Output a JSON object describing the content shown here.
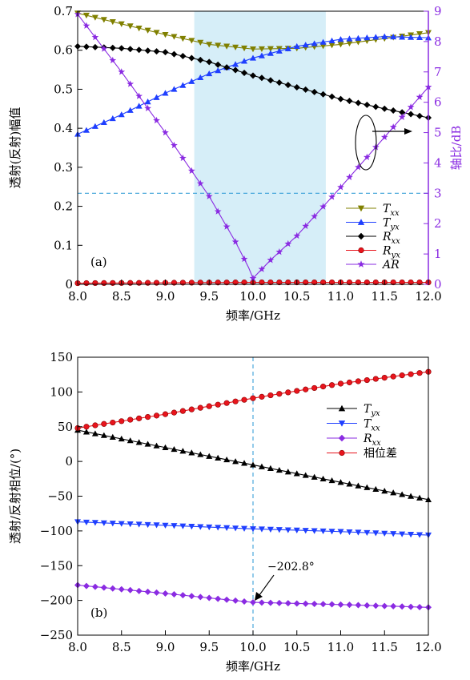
{
  "chart_data": [
    {
      "type": "line",
      "panel_label": "(a)",
      "xlabel": "频率/GHz",
      "ylabel": "透射(反射)幅值",
      "y2label": "轴比/dB",
      "xlim": [
        8.0,
        12.0
      ],
      "ylim": [
        0,
        0.7
      ],
      "y2lim": [
        0,
        9
      ],
      "xticks": [
        "8.0",
        "8.5",
        "9.0",
        "9.5",
        "10.0",
        "10.5",
        "11.0",
        "11.5",
        "12.0"
      ],
      "yticks": [
        "0",
        "0.1",
        "0.2",
        "0.3",
        "0.4",
        "0.5",
        "0.6",
        "0.7"
      ],
      "y2ticks": [
        "0",
        "1",
        "2",
        "3",
        "4",
        "5",
        "6",
        "7",
        "8",
        "9"
      ],
      "shaded_band": [
        9.33,
        10.83
      ],
      "hline_y2": 3,
      "legend_position": "lower-right",
      "colors": {
        "txx": "#808000",
        "tyx": "#1f3fff",
        "rxx": "#000000",
        "ryx": "#e8141c",
        "ar": "#8a2be2",
        "band": "#d6eef8",
        "dashed": "#3aa0d8",
        "y2axis": "#8a2be2"
      },
      "series": [
        {
          "name": "Txx",
          "sub": "xx",
          "key": "txx",
          "axis": "left",
          "marker": "triangle-down",
          "x": [
            8.0,
            9.0,
            9.5,
            10.0,
            10.5,
            11.0,
            11.5,
            12.0
          ],
          "y": [
            0.695,
            0.64,
            0.615,
            0.603,
            0.605,
            0.615,
            0.63,
            0.645
          ]
        },
        {
          "name": "Tyx",
          "sub": "yx",
          "key": "tyx",
          "axis": "left",
          "marker": "triangle-up",
          "x": [
            8.0,
            8.5,
            9.0,
            9.5,
            10.0,
            10.5,
            11.0,
            11.5,
            12.0
          ],
          "y": [
            0.385,
            0.435,
            0.49,
            0.54,
            0.58,
            0.61,
            0.628,
            0.635,
            0.632
          ]
        },
        {
          "name": "Rxx",
          "sub": "xx",
          "key": "rxx",
          "axis": "left",
          "marker": "diamond",
          "x": [
            8.0,
            8.5,
            9.0,
            9.5,
            10.0,
            10.5,
            11.0,
            11.5,
            12.0
          ],
          "y": [
            0.61,
            0.605,
            0.595,
            0.57,
            0.535,
            0.505,
            0.475,
            0.45,
            0.427
          ]
        },
        {
          "name": "Ryx",
          "sub": "yx",
          "key": "ryx",
          "axis": "left",
          "marker": "circle",
          "x": [
            8.0,
            9.0,
            10.0,
            11.0,
            12.0
          ],
          "y": [
            0.003,
            0.004,
            0.005,
            0.005,
            0.005
          ]
        },
        {
          "name": "AR",
          "sub": "",
          "key": "ar",
          "axis": "right",
          "marker": "star",
          "x": [
            8.0,
            8.5,
            9.0,
            9.5,
            9.8,
            9.95,
            10.0,
            10.2,
            10.5,
            11.0,
            11.5,
            12.0
          ],
          "y": [
            8.9,
            7.0,
            5.0,
            2.9,
            1.4,
            0.55,
            0.2,
            0.8,
            1.6,
            3.2,
            4.85,
            6.5
          ]
        }
      ]
    },
    {
      "type": "line",
      "panel_label": "(b)",
      "xlabel": "频率/GHz",
      "ylabel": "透射/反射相位/(°)",
      "xlim": [
        8.0,
        12.0
      ],
      "ylim": [
        -250,
        150
      ],
      "xticks": [
        "8.0",
        "8.5",
        "9.0",
        "9.5",
        "10.0",
        "10.5",
        "11.0",
        "11.5",
        "12.0"
      ],
      "yticks": [
        "−250",
        "−200",
        "−150",
        "−100",
        "−50",
        "0",
        "50",
        "100",
        "150"
      ],
      "vline_x": 10.0,
      "annotation": {
        "text": "−202.8°",
        "x": 10.0,
        "y": -202.8
      },
      "legend_position": "upper-right",
      "colors": {
        "tyx": "#000000",
        "txx": "#1f3fff",
        "rxx": "#8a2be2",
        "diff": "#e8141c",
        "dashed": "#3aa0d8"
      },
      "series": [
        {
          "name": "Tyx",
          "sub": "yx",
          "key": "tyx",
          "marker": "triangle-up",
          "x": [
            8.0,
            9.0,
            10.0,
            11.0,
            12.0
          ],
          "y": [
            45,
            20,
            -5,
            -30,
            -55
          ]
        },
        {
          "name": "Txx",
          "sub": "xx",
          "key": "txx",
          "marker": "triangle-down",
          "x": [
            8.0,
            9.0,
            10.0,
            11.0,
            12.0
          ],
          "y": [
            -87,
            -92,
            -97,
            -101,
            -106
          ]
        },
        {
          "name": "Rxx",
          "sub": "xx",
          "key": "rxx",
          "marker": "diamond",
          "x": [
            8.0,
            9.0,
            10.0,
            11.0,
            12.0
          ],
          "y": [
            -178,
            -190,
            -202.8,
            -206,
            -210
          ]
        },
        {
          "name": "相位差",
          "sub": "",
          "key": "diff",
          "marker": "circle",
          "x": [
            8.0,
            9.0,
            10.0,
            11.0,
            12.0
          ],
          "y": [
            48,
            68,
            91,
            112,
            129
          ]
        }
      ]
    }
  ]
}
